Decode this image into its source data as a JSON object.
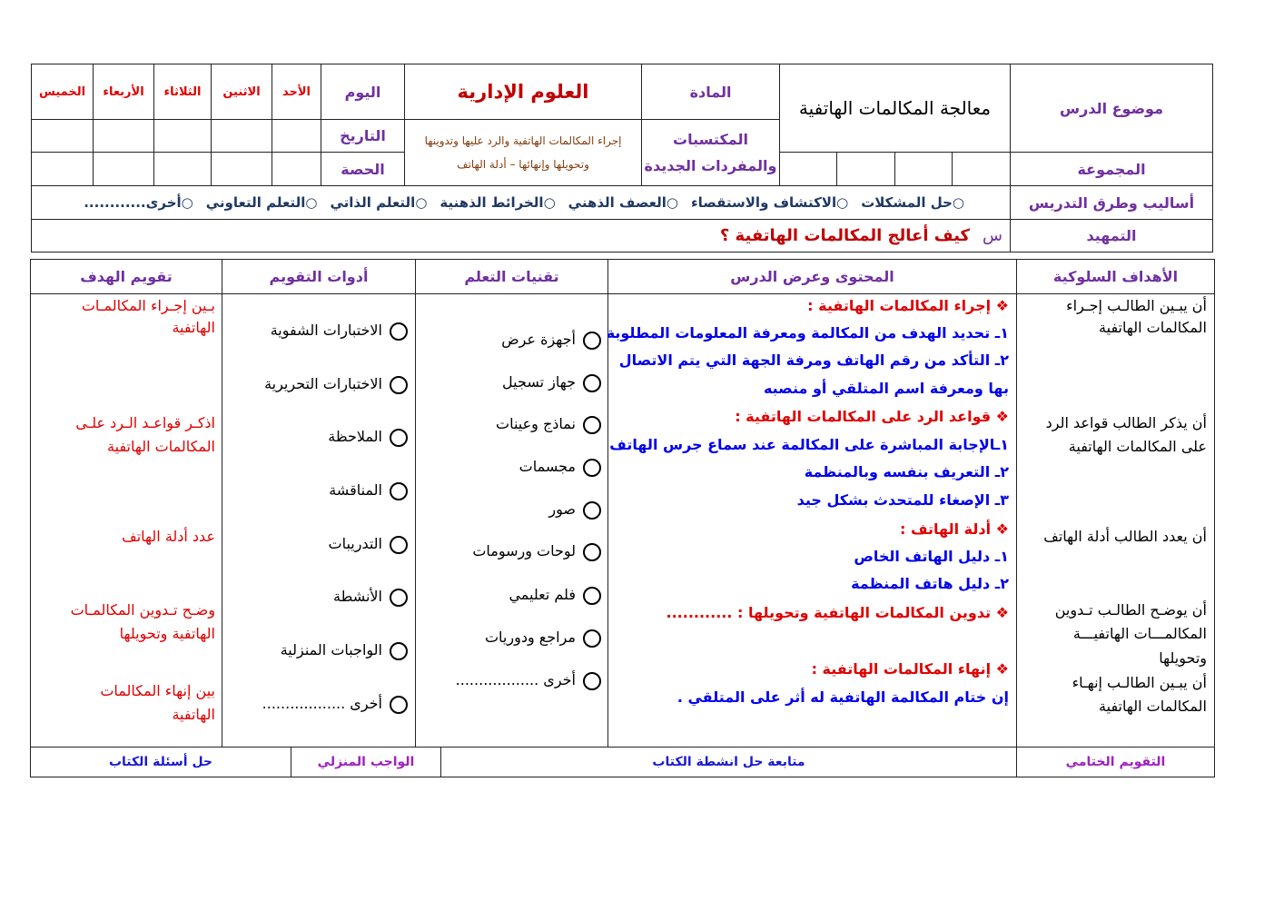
{
  "header": {
    "topic_label": "موضوع الدرس",
    "topic_value": "معالجة المكالمات الهاتفية",
    "subject_label": "المادة",
    "subject_value": "العلوم الإدارية",
    "acquired_label_1": "المكتسبات",
    "acquired_label_2": "والمفردات الجديدة",
    "acquired_value_1": "إجراء المكالمات الهاتفية والرد عليها وتدوينها",
    "acquired_value_2": "وتحويلها وإنهائها  –  أدلة الهاتف",
    "group_label": "المجموعة",
    "day_label": "اليوم",
    "date_label": "التاريخ",
    "period_label": "الحصة",
    "days": [
      "الأحد",
      "الاثنين",
      "الثلاثاء",
      "الأربعاء",
      "الخميس"
    ],
    "methods_label": "أساليب وطرق التدريس",
    "methods": [
      "حل المشكلات",
      "الاكتشاف والاستقصاء",
      "العصف الذهني",
      "الخرائط الذهنية",
      "التعلم  الذاتي",
      "التعلم التعاوني",
      "أخرى............"
    ],
    "intro_label": "التمهيد",
    "intro_prefix": "س",
    "intro_question": "كيف أعالج المكالمات الهاتفية ؟"
  },
  "main": {
    "columns": [
      "الأهداف السلوكية",
      "المحتوى وعرض الدرس",
      "تقنيات التعلم",
      "أدوات التقويم",
      "تقويم الهدف"
    ],
    "objectives": [
      "أن يبـين الطالـب إجـراء",
      "المكالمات الهاتفية",
      "أن يذكر الطالب قواعد الرد",
      "على المكالمات الهاتفية",
      "أن يعدد الطالب أدلة الهاتف",
      "أن يوضـح الطالـب تـدوين",
      "المكالمـــات الهاتفيـــة",
      "وتحويلها",
      "أن يبـين الطالـب إنهـاء",
      "المكالمات الهاتفية"
    ],
    "content": [
      "❖  إجراء المكالمات الهاتفية :",
      "١ـ تحديد الهدف من المكالمة ومعرفة المعلومات المطلوبة",
      "٢ـ التأكد من رقم الهاتف ومرفة الجهة التي يتم الاتصال",
      "بها ومعرفة اسم المتلقي أو منصبه",
      "❖  قواعد الرد على المكالمات الهاتفية :",
      "١ـالإجابة المباشرة على المكالمة عند سماع جرس الهاتف",
      "٢ـ التعريف بنفسه وبالمنظمة",
      "٣ـ الإصغاء للمتحدث بشكل جيد",
      "❖  أدلة الهاتف :",
      "١ـ دليل الهاتف الخاص",
      "٢ـ دليل هاتف المنظمة",
      "❖  تدوين المكالمات الهاتفية وتحويلها : ............",
      "❖  إنهاء المكالمات الهاتفية :",
      "إن ختام المكالمة الهاتفية له أثر على المتلقي ."
    ],
    "techniques": [
      "أجهزة عرض",
      "جهاز تسجيل",
      "نماذج وعينات",
      "مجسمات",
      "صور",
      "لوحات ورسومات",
      "فلم تعليمي",
      "مراجع ودوريات",
      "أخرى .................."
    ],
    "tools": [
      "الاختبارات الشفوية",
      "الاختبارات التحريرية",
      "الملاحظة",
      "المناقشة",
      "التدريبات",
      "الأنشطة",
      "الواجبات المنزلية",
      "أخرى .................."
    ],
    "evaluation": [
      "بـين إجـراء المكالمـات",
      "الهاتفية",
      "اذكـر قواعـد الـرد علـى",
      "المكالمات الهاتفية",
      "عدد أدلة الهاتف",
      "وضـح تـدوين المكالمـات",
      "الهاتفية وتحويلها",
      "بين إنهاء المكالمات",
      "الهاتفية"
    ]
  },
  "footer": {
    "final_eval_label": "التقويم الختامي",
    "final_eval_value": "متابعة حل انشطة الكتاب",
    "homework_label": "الواجب المنزلي",
    "homework_value": "حل أسئلة الكتاب"
  },
  "colors": {
    "label": "#7030a0",
    "red": "#e00000",
    "blue": "#0000ee",
    "navy": "#1f3864",
    "brown": "#843c0c"
  }
}
